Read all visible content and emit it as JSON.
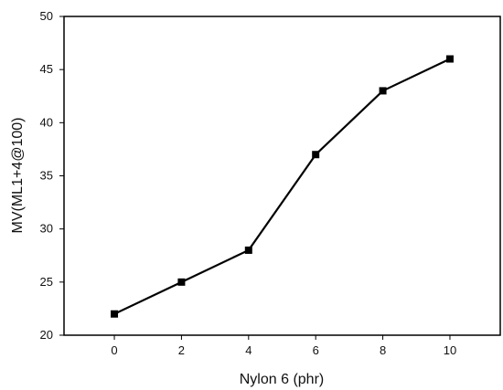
{
  "chart_data": {
    "type": "line",
    "title": "",
    "xlabel": "Nylon 6 (phr)",
    "ylabel": "MV(ML1+4@100)",
    "x": [
      0,
      2,
      4,
      6,
      8,
      10
    ],
    "xlim": [
      -1.5,
      11.5
    ],
    "ylim": [
      20,
      50
    ],
    "x_ticks": [
      "0",
      "2",
      "4",
      "6",
      "8",
      "10"
    ],
    "y_ticks": [
      "20",
      "25",
      "30",
      "35",
      "40",
      "45",
      "50"
    ],
    "grid": false,
    "legend": "none",
    "series": [
      {
        "values": [
          22,
          25,
          28,
          37,
          43,
          46
        ],
        "marker": "square",
        "color": "#000000"
      }
    ]
  }
}
